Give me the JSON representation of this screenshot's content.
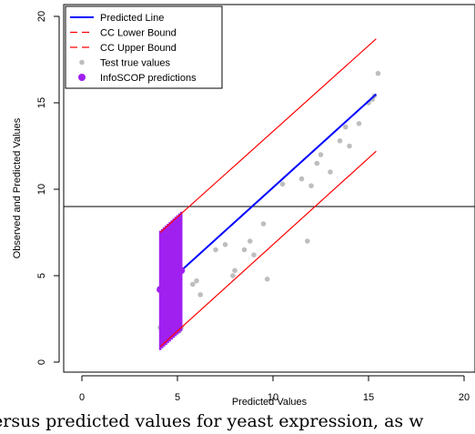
{
  "caption": "ersus predicted values for yeast expression, as w",
  "chart_data": {
    "type": "scatter",
    "title": "",
    "xlabel": "Predicted Values",
    "ylabel": "Observed and Predicted Values",
    "xlim": [
      0,
      20
    ],
    "ylim": [
      0,
      20
    ],
    "xticks": [
      0,
      5,
      10,
      15,
      20
    ],
    "yticks": [
      0,
      5,
      10,
      15,
      20
    ],
    "hline": 9.0,
    "legend_position": "top-left",
    "colors": {
      "predicted": "#0000ff",
      "bounds": "#ff0000",
      "test": "#bebebe",
      "infoscop": "#a020f0"
    },
    "series": [
      {
        "name": "Predicted Line",
        "kind": "line",
        "x": [
          4.1,
          15.4
        ],
        "y": [
          4.2,
          15.5
        ]
      },
      {
        "name": "CC Lower Bound",
        "kind": "dashed-line",
        "x": [
          4.1,
          15.4
        ],
        "y": [
          0.9,
          12.2
        ]
      },
      {
        "name": "CC Upper Bound",
        "kind": "dashed-line",
        "x": [
          4.1,
          15.4
        ],
        "y": [
          7.5,
          18.7
        ]
      },
      {
        "name": "Test true values",
        "kind": "points",
        "x": [
          4.1,
          4.2,
          4.3,
          4.4,
          4.5,
          4.6,
          4.7,
          4.8,
          4.9,
          5.0,
          5.1,
          5.2,
          4.3,
          4.6,
          4.9,
          5.1,
          5.8,
          6.0,
          6.2,
          7.0,
          7.5,
          7.9,
          8.0,
          8.5,
          8.8,
          9.0,
          9.5,
          10.5,
          11.5,
          11.8,
          12.0,
          12.3,
          12.5,
          13.0,
          13.5,
          13.8,
          14.0,
          14.5,
          15.0,
          15.2,
          15.5,
          15.3,
          9.7
        ],
        "y": [
          2.0,
          2.3,
          2.1,
          2.5,
          2.2,
          1.9,
          2.4,
          2.6,
          2.1,
          2.3,
          1.8,
          2.0,
          2.7,
          2.8,
          2.5,
          2.2,
          4.5,
          4.7,
          3.9,
          6.5,
          6.8,
          5.0,
          5.3,
          6.5,
          7.0,
          6.2,
          8.0,
          10.3,
          10.6,
          7.0,
          10.2,
          11.5,
          12.0,
          11.0,
          12.8,
          13.6,
          12.5,
          13.8,
          15.0,
          15.2,
          16.7,
          15.4,
          4.8
        ]
      },
      {
        "name": "InfoSCOP predictions",
        "kind": "points",
        "x": [
          4.1,
          4.3,
          4.5,
          4.7,
          4.9,
          5.1,
          5.2
        ],
        "y": [
          4.2,
          4.4,
          4.6,
          4.8,
          5.0,
          5.2,
          5.3
        ]
      }
    ],
    "intervals": {
      "color": "#a020f0",
      "x": [
        4.1,
        4.2,
        4.3,
        4.4,
        4.5,
        4.6,
        4.7,
        4.8,
        4.9,
        5.0,
        5.1,
        5.2
      ],
      "low": [
        0.7,
        0.8,
        0.9,
        1.0,
        1.1,
        1.2,
        1.3,
        1.4,
        1.5,
        1.6,
        1.7,
        1.8
      ],
      "high": [
        7.6,
        7.7,
        7.8,
        7.9,
        8.0,
        8.1,
        8.2,
        8.3,
        8.4,
        8.5,
        8.6,
        8.7
      ]
    }
  }
}
